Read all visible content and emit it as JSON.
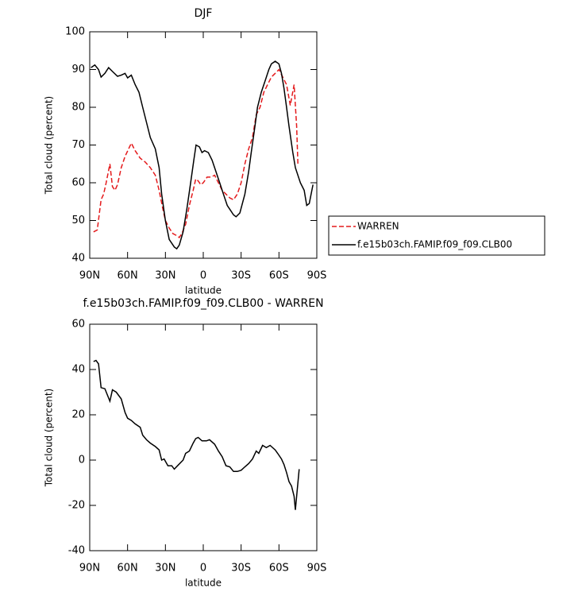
{
  "chart_data": [
    {
      "type": "line",
      "title": "DJF",
      "xlabel": "latitude",
      "ylabel": "Total cloud (percent)",
      "xlim": [
        90,
        -90
      ],
      "xticks": [
        {
          "value": 90,
          "label": "90N"
        },
        {
          "value": 60,
          "label": "60N"
        },
        {
          "value": 30,
          "label": "30N"
        },
        0,
        {
          "value": -30,
          "label": "30S"
        },
        {
          "value": -60,
          "label": "60S"
        },
        {
          "value": -90,
          "label": "90S"
        }
      ],
      "ylim": [
        40,
        100
      ],
      "yticks": [
        40,
        50,
        60,
        70,
        80,
        90,
        100
      ],
      "series": [
        {
          "name": "WARREN",
          "color": "#e41a1c",
          "dash": true,
          "x": [
            87,
            84,
            81,
            79,
            77,
            74,
            72,
            70,
            68,
            65,
            62,
            57,
            54,
            50,
            46,
            42,
            38,
            35,
            32,
            30,
            27,
            24,
            21,
            19,
            17,
            14,
            11,
            8,
            6,
            4,
            2,
            0,
            -3,
            -6,
            -9,
            -12,
            -15,
            -18,
            -21,
            -24,
            -27,
            -30,
            -33,
            -36,
            -39,
            -42,
            -45,
            -48,
            -51,
            -54,
            -57,
            -60,
            -63,
            -66,
            -69,
            -72,
            -74,
            -75
          ],
          "values": [
            47,
            47.5,
            55.5,
            57,
            60,
            65,
            59,
            58,
            59.5,
            64,
            67,
            70.5,
            68.5,
            66.5,
            65.5,
            64,
            62,
            58,
            53,
            50,
            48,
            46.5,
            46,
            45.5,
            46.5,
            49,
            54,
            58,
            61,
            60.5,
            59.5,
            60,
            61.5,
            61.5,
            62,
            60,
            58,
            57,
            56,
            55.5,
            57,
            60,
            65,
            69,
            72,
            78,
            80,
            84,
            86,
            88,
            89,
            90,
            88,
            86,
            80.5,
            86,
            75,
            65
          ]
        },
        {
          "name": "f.e15b03ch.FAMIP.f09_f09.CLB00",
          "color": "#000000",
          "dash": false,
          "x": [
            89,
            86,
            83,
            81,
            78,
            75,
            72,
            68,
            65,
            62,
            60,
            57,
            54,
            51,
            48,
            45,
            42,
            38,
            35,
            33,
            30,
            27,
            23,
            21,
            19,
            16,
            13,
            10,
            7.5,
            5.7,
            3,
            1,
            -1,
            -4,
            -7,
            -9,
            -13,
            -16,
            -19,
            -21,
            -24,
            -26,
            -29,
            -33,
            -36,
            -38,
            -41,
            -43,
            -46,
            -49,
            -52,
            -54,
            -57,
            -60,
            -62,
            -64,
            -66,
            -68,
            -71,
            -73,
            -77,
            -80,
            -82,
            -84,
            -87
          ],
          "values": [
            90.5,
            91.2,
            90,
            88,
            89,
            90.5,
            89.5,
            88.2,
            88.5,
            89,
            87.8,
            88.5,
            86,
            84,
            80,
            76,
            72,
            69,
            64,
            57,
            50,
            45,
            43,
            42.5,
            43.5,
            47,
            53,
            60,
            66,
            70,
            69.5,
            68,
            68.5,
            68,
            66,
            64,
            60,
            57,
            54,
            53,
            51.5,
            51,
            52,
            57,
            63,
            68,
            75,
            80,
            84,
            87,
            90,
            91.5,
            92.2,
            91.5,
            89,
            85,
            80,
            75,
            68,
            64,
            60,
            58,
            54,
            54.5,
            59.5
          ]
        }
      ]
    },
    {
      "type": "line",
      "title": "f.e15b03ch.FAMIP.f09_f09.CLB00 - WARREN",
      "xlabel": "latitude",
      "ylabel": "Total cloud (percent)",
      "xlim": [
        90,
        -90
      ],
      "xticks": [
        {
          "value": 90,
          "label": "90N"
        },
        {
          "value": 60,
          "label": "60N"
        },
        {
          "value": 30,
          "label": "30N"
        },
        0,
        {
          "value": -30,
          "label": "30S"
        },
        {
          "value": -60,
          "label": "60S"
        },
        {
          "value": -90,
          "label": "90S"
        }
      ],
      "ylim": [
        -40,
        60
      ],
      "yticks": [
        -40,
        -20,
        0,
        20,
        40,
        60
      ],
      "series": [
        {
          "color": "#000000",
          "dash": false,
          "x": [
            87,
            85,
            83,
            81,
            78,
            74,
            72,
            69,
            65,
            62,
            60,
            57,
            54,
            50,
            48,
            45,
            42,
            38,
            35,
            33,
            31,
            28,
            25,
            23,
            19.5,
            16,
            14,
            11,
            8,
            6,
            4,
            1,
            -2.5,
            -5,
            -9,
            -12,
            -15,
            -18,
            -21,
            -24,
            -27,
            -30,
            -33,
            -36,
            -39,
            -42,
            -44,
            -47,
            -50,
            -53,
            -57,
            -59,
            -62,
            -64,
            -66,
            -68,
            -70,
            -72,
            -73,
            -74,
            -76
          ],
          "values": [
            43.5,
            44,
            42.5,
            32,
            31.5,
            26,
            31,
            30,
            27,
            21,
            18.5,
            17.5,
            16,
            14.5,
            11,
            9,
            7.5,
            6,
            4.5,
            0,
            0.5,
            -2.5,
            -2.5,
            -4,
            -2,
            0,
            3,
            4,
            7.5,
            9.5,
            10,
            8.5,
            8.5,
            9,
            7,
            4,
            1.5,
            -2.5,
            -3,
            -5,
            -5,
            -4.5,
            -3,
            -1.5,
            0.5,
            4,
            3,
            6.5,
            5.5,
            6.5,
            4.5,
            3,
            0.5,
            -2,
            -5.5,
            -9.5,
            -11.5,
            -16,
            -22,
            -16,
            -4
          ]
        }
      ]
    }
  ]
}
